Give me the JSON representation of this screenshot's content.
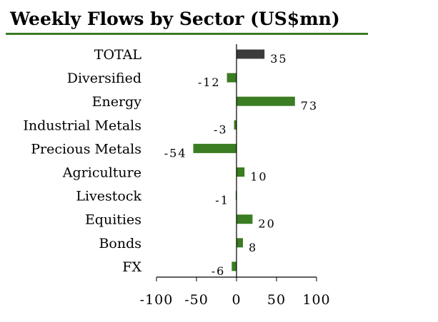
{
  "chart_data": {
    "type": "bar",
    "orientation": "horizontal",
    "title": "Weekly Flows by Sector (US$mn)",
    "categories": [
      "TOTAL",
      "Diversified",
      "Energy",
      "Industrial Metals",
      "Precious Metals",
      "Agriculture",
      "Livestock",
      "Equities",
      "Bonds",
      "FX"
    ],
    "values": [
      35,
      -12,
      73,
      -3,
      -54,
      10,
      -1,
      20,
      8,
      -6
    ],
    "value_labels": [
      "35",
      "-12",
      "73",
      "-3",
      "-54",
      "10",
      "-1",
      "20",
      "8",
      "-6"
    ],
    "xlim": [
      -100,
      100
    ],
    "xticks": [
      -100,
      -50,
      0,
      50,
      100
    ],
    "xtick_labels": [
      "-100",
      "-50",
      "0",
      "50",
      "100"
    ],
    "xlabel": "",
    "ylabel": "",
    "colors": {
      "default": "#3a7d22",
      "total": "#3b3b3b",
      "title_rule": "#3a7d22",
      "axis": "#000000"
    }
  }
}
